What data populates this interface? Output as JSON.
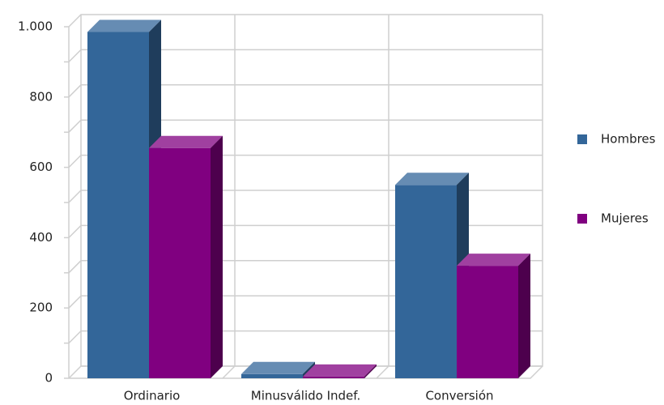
{
  "chart_data": {
    "type": "bar3d",
    "categories": [
      "Ordinario",
      "Minusválido Indef.",
      "Conversión"
    ],
    "series": [
      {
        "name": "Hombres",
        "color": "#336699",
        "values": [
          985,
          12,
          550
        ]
      },
      {
        "name": "Mujeres",
        "color": "#800080",
        "values": [
          655,
          5,
          320
        ]
      }
    ],
    "ylim": [
      0,
      1000
    ],
    "yticks": [
      0,
      200,
      400,
      600,
      800,
      {
        "value": 1000,
        "label": "1.000"
      }
    ],
    "minor_yticks": [
      100,
      300,
      500,
      700,
      900
    ],
    "grid": true,
    "legend": "right"
  }
}
